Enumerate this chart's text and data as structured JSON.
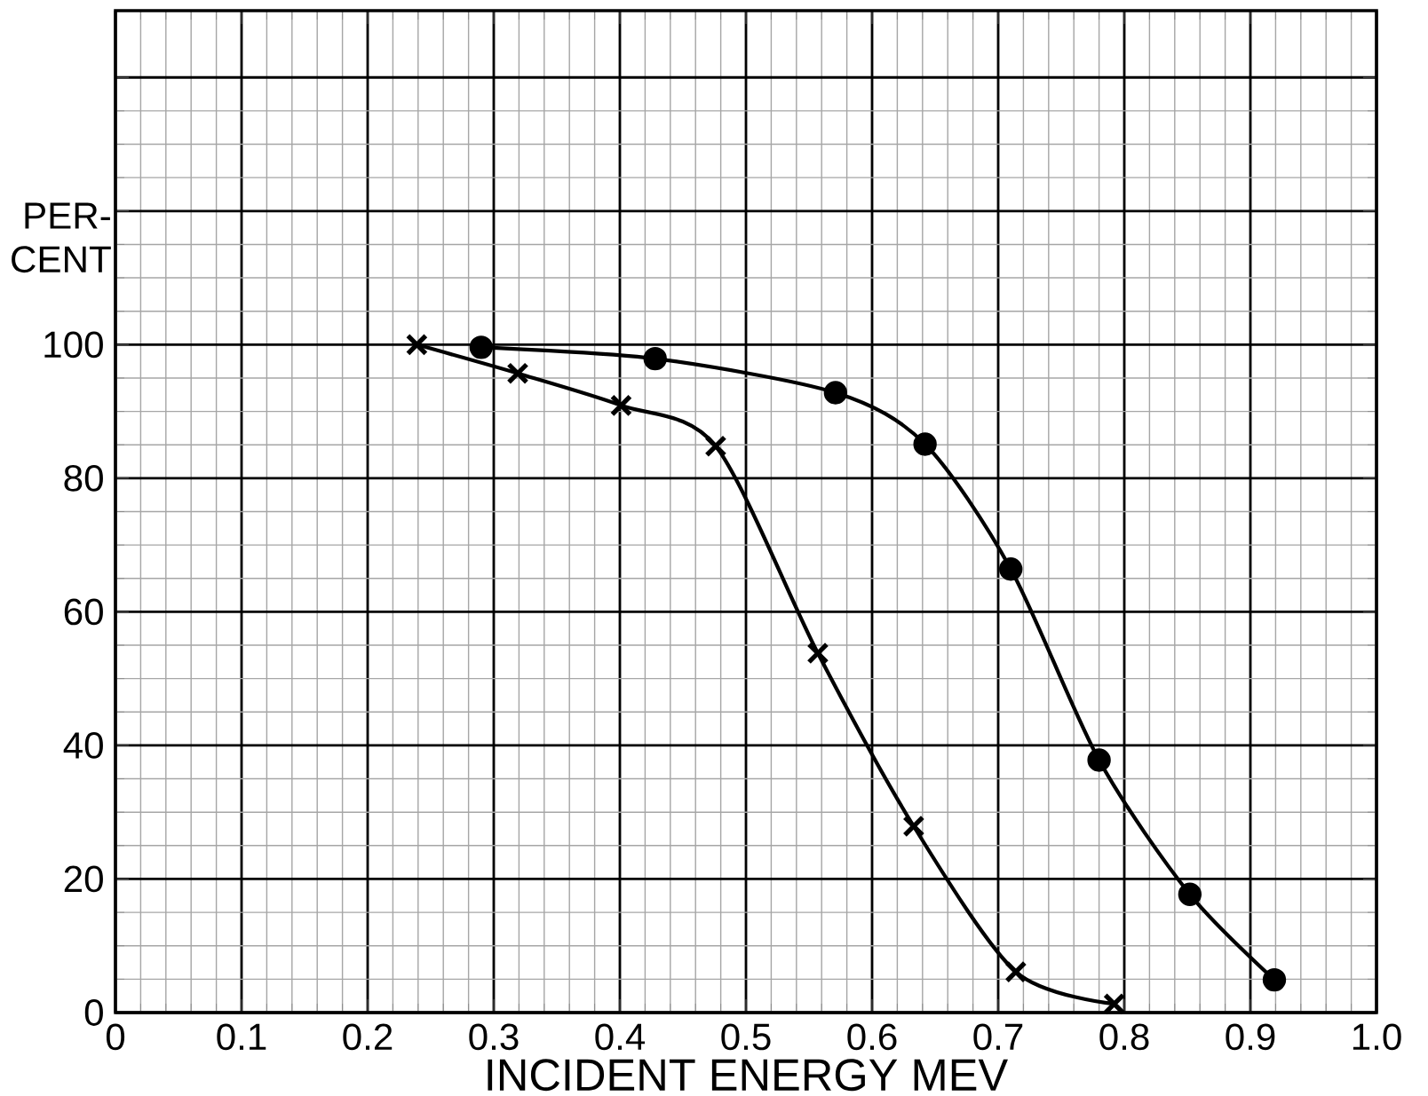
{
  "chart_data": {
    "type": "line",
    "xlabel": "INCIDENT ENERGY MEV",
    "ylabel": "PER- CENT",
    "xlim": [
      0,
      1.0
    ],
    "ylim": [
      0,
      150
    ],
    "xticks": [
      {
        "value": 0,
        "label": "0"
      },
      0.1,
      0.2,
      0.3,
      0.4,
      0.5,
      0.6,
      0.7,
      0.8,
      0.9,
      {
        "value": 1.0,
        "label": "1.0"
      }
    ],
    "yticks": [
      {
        "value": 0,
        "label": "0"
      },
      20,
      40,
      60,
      80,
      100,
      {
        "value": 120,
        "label": null
      },
      {
        "value": 140,
        "label": null
      }
    ],
    "grid": true,
    "series": [
      {
        "color": "#000000",
        "marker": "circle",
        "x": [
          0.29,
          0.428,
          0.571,
          0.642,
          0.71,
          0.78,
          0.852,
          0.919
        ],
        "values": [
          99.6,
          97.9,
          92.8,
          85.1,
          66.4,
          37.8,
          17.7,
          4.9
        ]
      },
      {
        "color": "#000000",
        "marker": "cross",
        "x": [
          0.239,
          0.319,
          0.401,
          0.476,
          0.557,
          0.633,
          0.714,
          0.792
        ],
        "values": [
          100,
          95.7,
          90.9,
          84.8,
          53.8,
          27.9,
          6.1,
          1.3
        ]
      }
    ]
  }
}
